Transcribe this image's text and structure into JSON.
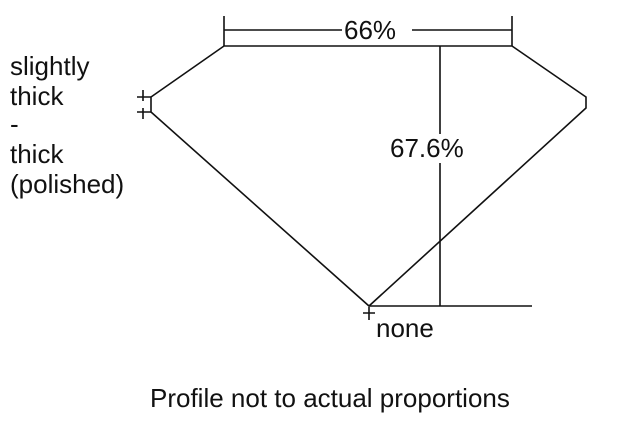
{
  "diagram": {
    "table_width": "66%",
    "total_depth": "67.6%",
    "culet": "none",
    "girdle_lines": [
      "slightly",
      "thick",
      "-",
      "thick",
      "(polished)"
    ],
    "footnote": "Profile not to actual proportions",
    "line_color": "#111111"
  }
}
